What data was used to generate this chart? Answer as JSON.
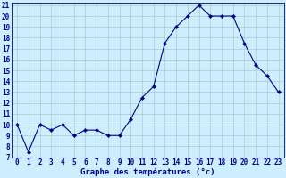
{
  "hours": [
    0,
    1,
    2,
    3,
    4,
    5,
    6,
    7,
    8,
    9,
    10,
    11,
    12,
    13,
    14,
    15,
    16,
    17,
    18,
    19,
    20,
    21,
    22,
    23
  ],
  "temps": [
    10,
    7.5,
    10,
    9.5,
    10,
    9,
    9.5,
    9.5,
    9,
    9,
    10.5,
    12.5,
    13.5,
    17.5,
    19,
    20,
    21,
    20,
    20,
    20,
    17.5,
    15.5,
    14.5,
    13
  ],
  "xlabel": "Graphe des températures (°c)",
  "ylim": [
    7,
    21
  ],
  "xlim_min": -0.5,
  "xlim_max": 23.5,
  "yticks": [
    7,
    8,
    9,
    10,
    11,
    12,
    13,
    14,
    15,
    16,
    17,
    18,
    19,
    20,
    21
  ],
  "xticks": [
    0,
    1,
    2,
    3,
    4,
    5,
    6,
    7,
    8,
    9,
    10,
    11,
    12,
    13,
    14,
    15,
    16,
    17,
    18,
    19,
    20,
    21,
    22,
    23
  ],
  "line_color": "#00008B",
  "marker": "D",
  "marker_size": 2.0,
  "bg_color": "#cceeff",
  "grid_color": "#aacccc",
  "label_color": "#00008B",
  "tick_fontsize": 5.5,
  "xlabel_fontsize": 6.5
}
